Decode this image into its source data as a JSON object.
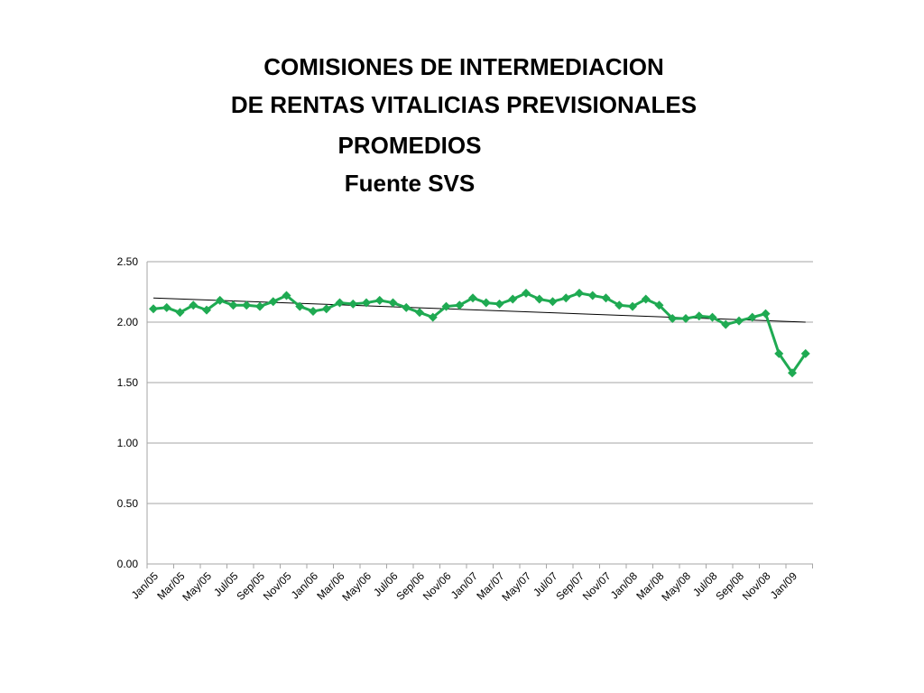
{
  "title": {
    "line1": "COMISIONES DE INTERMEDIACION",
    "line2": "DE RENTAS VITALICIAS PREVISIONALES",
    "line3": "PROMEDIOS",
    "line4": "Fuente SVS"
  },
  "colors": {
    "series": "#1faa52",
    "trend": "#000000",
    "grid": "#a6a6a6"
  },
  "chart_data": {
    "type": "line",
    "x": [
      "Jan/05",
      "Feb/05",
      "Mar/05",
      "Apr/05",
      "May/05",
      "Jun/05",
      "Jul/05",
      "Aug/05",
      "Sep/05",
      "Oct/05",
      "Nov/05",
      "Dec/05",
      "Jan/06",
      "Feb/06",
      "Mar/06",
      "Apr/06",
      "May/06",
      "Jun/06",
      "Jul/06",
      "Aug/06",
      "Sep/06",
      "Oct/06",
      "Nov/06",
      "Dec/06",
      "Jan/07",
      "Feb/07",
      "Mar/07",
      "Apr/07",
      "May/07",
      "Jun/07",
      "Jul/07",
      "Aug/07",
      "Sep/07",
      "Oct/07",
      "Nov/07",
      "Dec/07",
      "Jan/08",
      "Feb/08",
      "Mar/08",
      "Apr/08",
      "May/08",
      "Jun/08",
      "Jul/08",
      "Aug/08",
      "Sep/08",
      "Oct/08",
      "Nov/08",
      "Dec/08",
      "Jan/09",
      "Feb/09"
    ],
    "x_tick_labels": [
      "Jan/05",
      "Mar/05",
      "May/05",
      "Jul/05",
      "Sep/05",
      "Nov/05",
      "Jan/06",
      "Mar/06",
      "May/06",
      "Jul/06",
      "Sep/06",
      "Nov/06",
      "Jan/07",
      "Mar/07",
      "May/07",
      "Jul/07",
      "Sep/07",
      "Nov/07",
      "Jan/08",
      "Mar/08",
      "May/08",
      "Jul/08",
      "Sep/08",
      "Nov/08",
      "Jan/09"
    ],
    "series": [
      {
        "values": [
          2.11,
          2.12,
          2.08,
          2.14,
          2.1,
          2.18,
          2.14,
          2.14,
          2.13,
          2.17,
          2.22,
          2.13,
          2.09,
          2.11,
          2.16,
          2.15,
          2.16,
          2.18,
          2.16,
          2.12,
          2.08,
          2.04,
          2.13,
          2.14,
          2.2,
          2.16,
          2.15,
          2.19,
          2.24,
          2.19,
          2.17,
          2.2,
          2.24,
          2.22,
          2.2,
          2.14,
          2.13,
          2.19,
          2.14,
          2.03,
          2.03,
          2.05,
          2.04,
          1.98,
          2.01,
          2.04,
          2.07,
          1.74,
          1.58,
          1.74
        ]
      }
    ],
    "trendline": {
      "type": "linear",
      "start": 2.2,
      "end": 2.0
    },
    "ylim": [
      0,
      2.5
    ],
    "y_ticks": [
      "0.00",
      "0.50",
      "1.00",
      "1.50",
      "2.00",
      "2.50"
    ],
    "grid": true,
    "legend": "none",
    "xlabel": "",
    "ylabel": ""
  }
}
